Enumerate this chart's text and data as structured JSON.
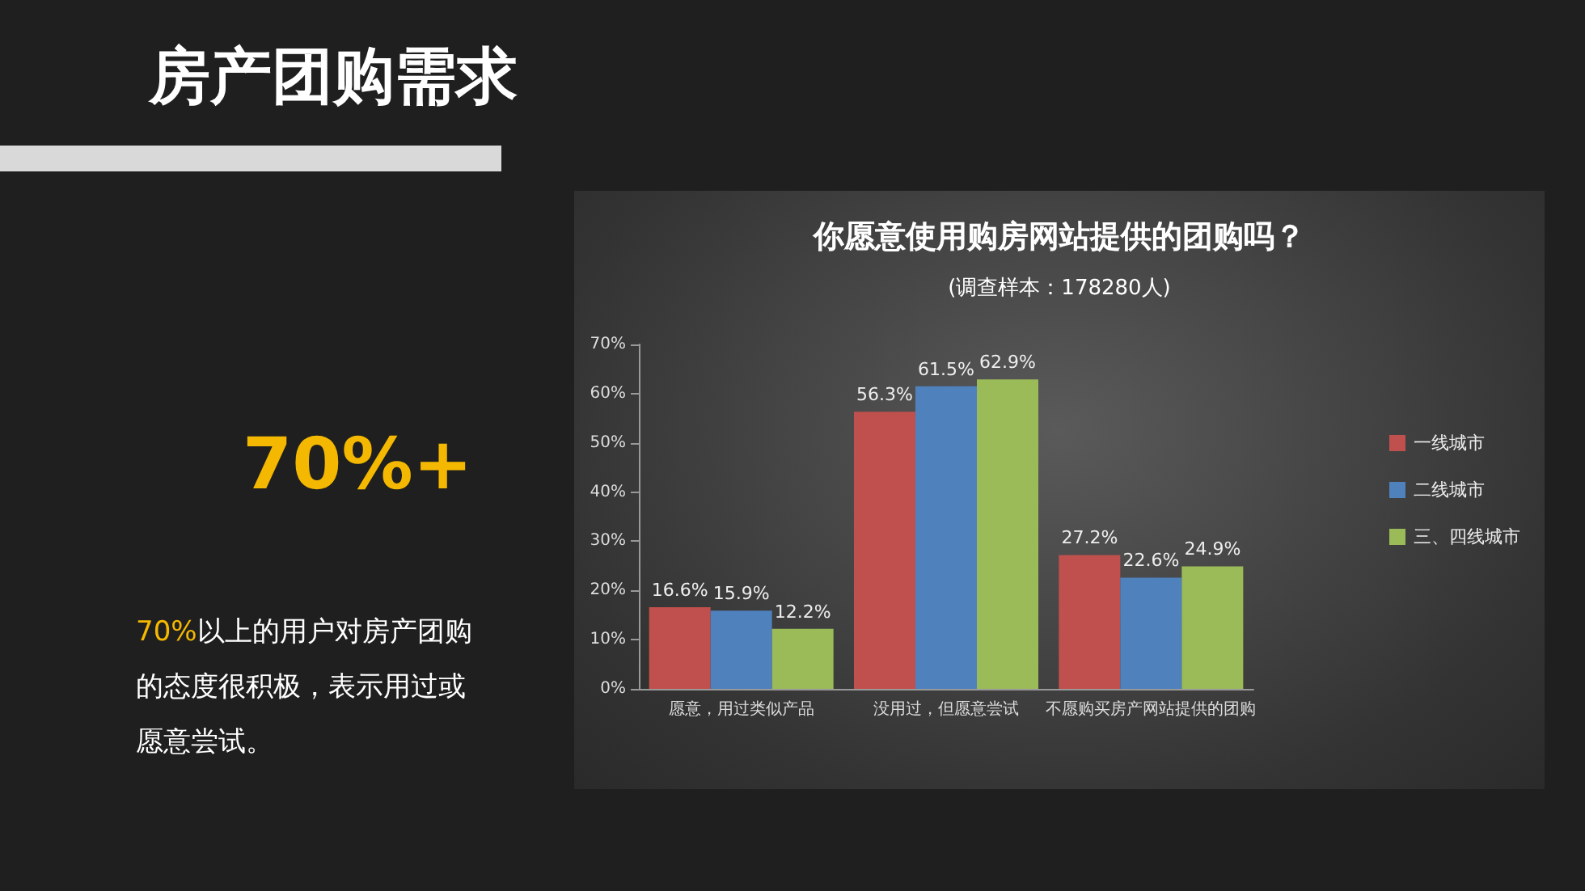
{
  "chart_data": {
    "type": "bar",
    "title": "你愿意使用购房网站提供的团购吗？",
    "subtitle": "(调查样本：178280人)",
    "categories": [
      "愿意，用过类似产品",
      "没用过，但愿意尝试",
      "不愿购买房产网站提供的团购"
    ],
    "series": [
      {
        "name": "一线城市",
        "color": "#c0504d",
        "values": [
          16.6,
          56.3,
          27.2
        ],
        "value_labels": [
          "16.6%",
          "56.3%",
          "27.2%"
        ]
      },
      {
        "name": "二线城市",
        "color": "#4f81bd",
        "values": [
          15.9,
          61.5,
          22.6
        ],
        "value_labels": [
          "15.9%",
          "61.5%",
          "22.6%"
        ]
      },
      {
        "name": "三、四线城市",
        "color": "#9bbb59",
        "values": [
          12.2,
          62.9,
          24.9
        ],
        "value_labels": [
          "12.2%",
          "62.9%",
          "24.9%"
        ]
      }
    ],
    "ylim": [
      0,
      70
    ],
    "yticks": [
      {
        "value": 0,
        "label": "0%"
      },
      {
        "value": 10,
        "label": "10%"
      },
      {
        "value": 20,
        "label": "20%"
      },
      {
        "value": 30,
        "label": "30%"
      },
      {
        "value": 40,
        "label": "40%"
      },
      {
        "value": 50,
        "label": "50%"
      },
      {
        "value": 60,
        "label": "60%"
      },
      {
        "value": 70,
        "label": "70%"
      }
    ],
    "legend": "right",
    "annotations": [
      "房产团购需求",
      "70%+",
      "70%",
      "以上的用户对房产团购的态度很积极，表示用过或愿意尝试。"
    ]
  }
}
